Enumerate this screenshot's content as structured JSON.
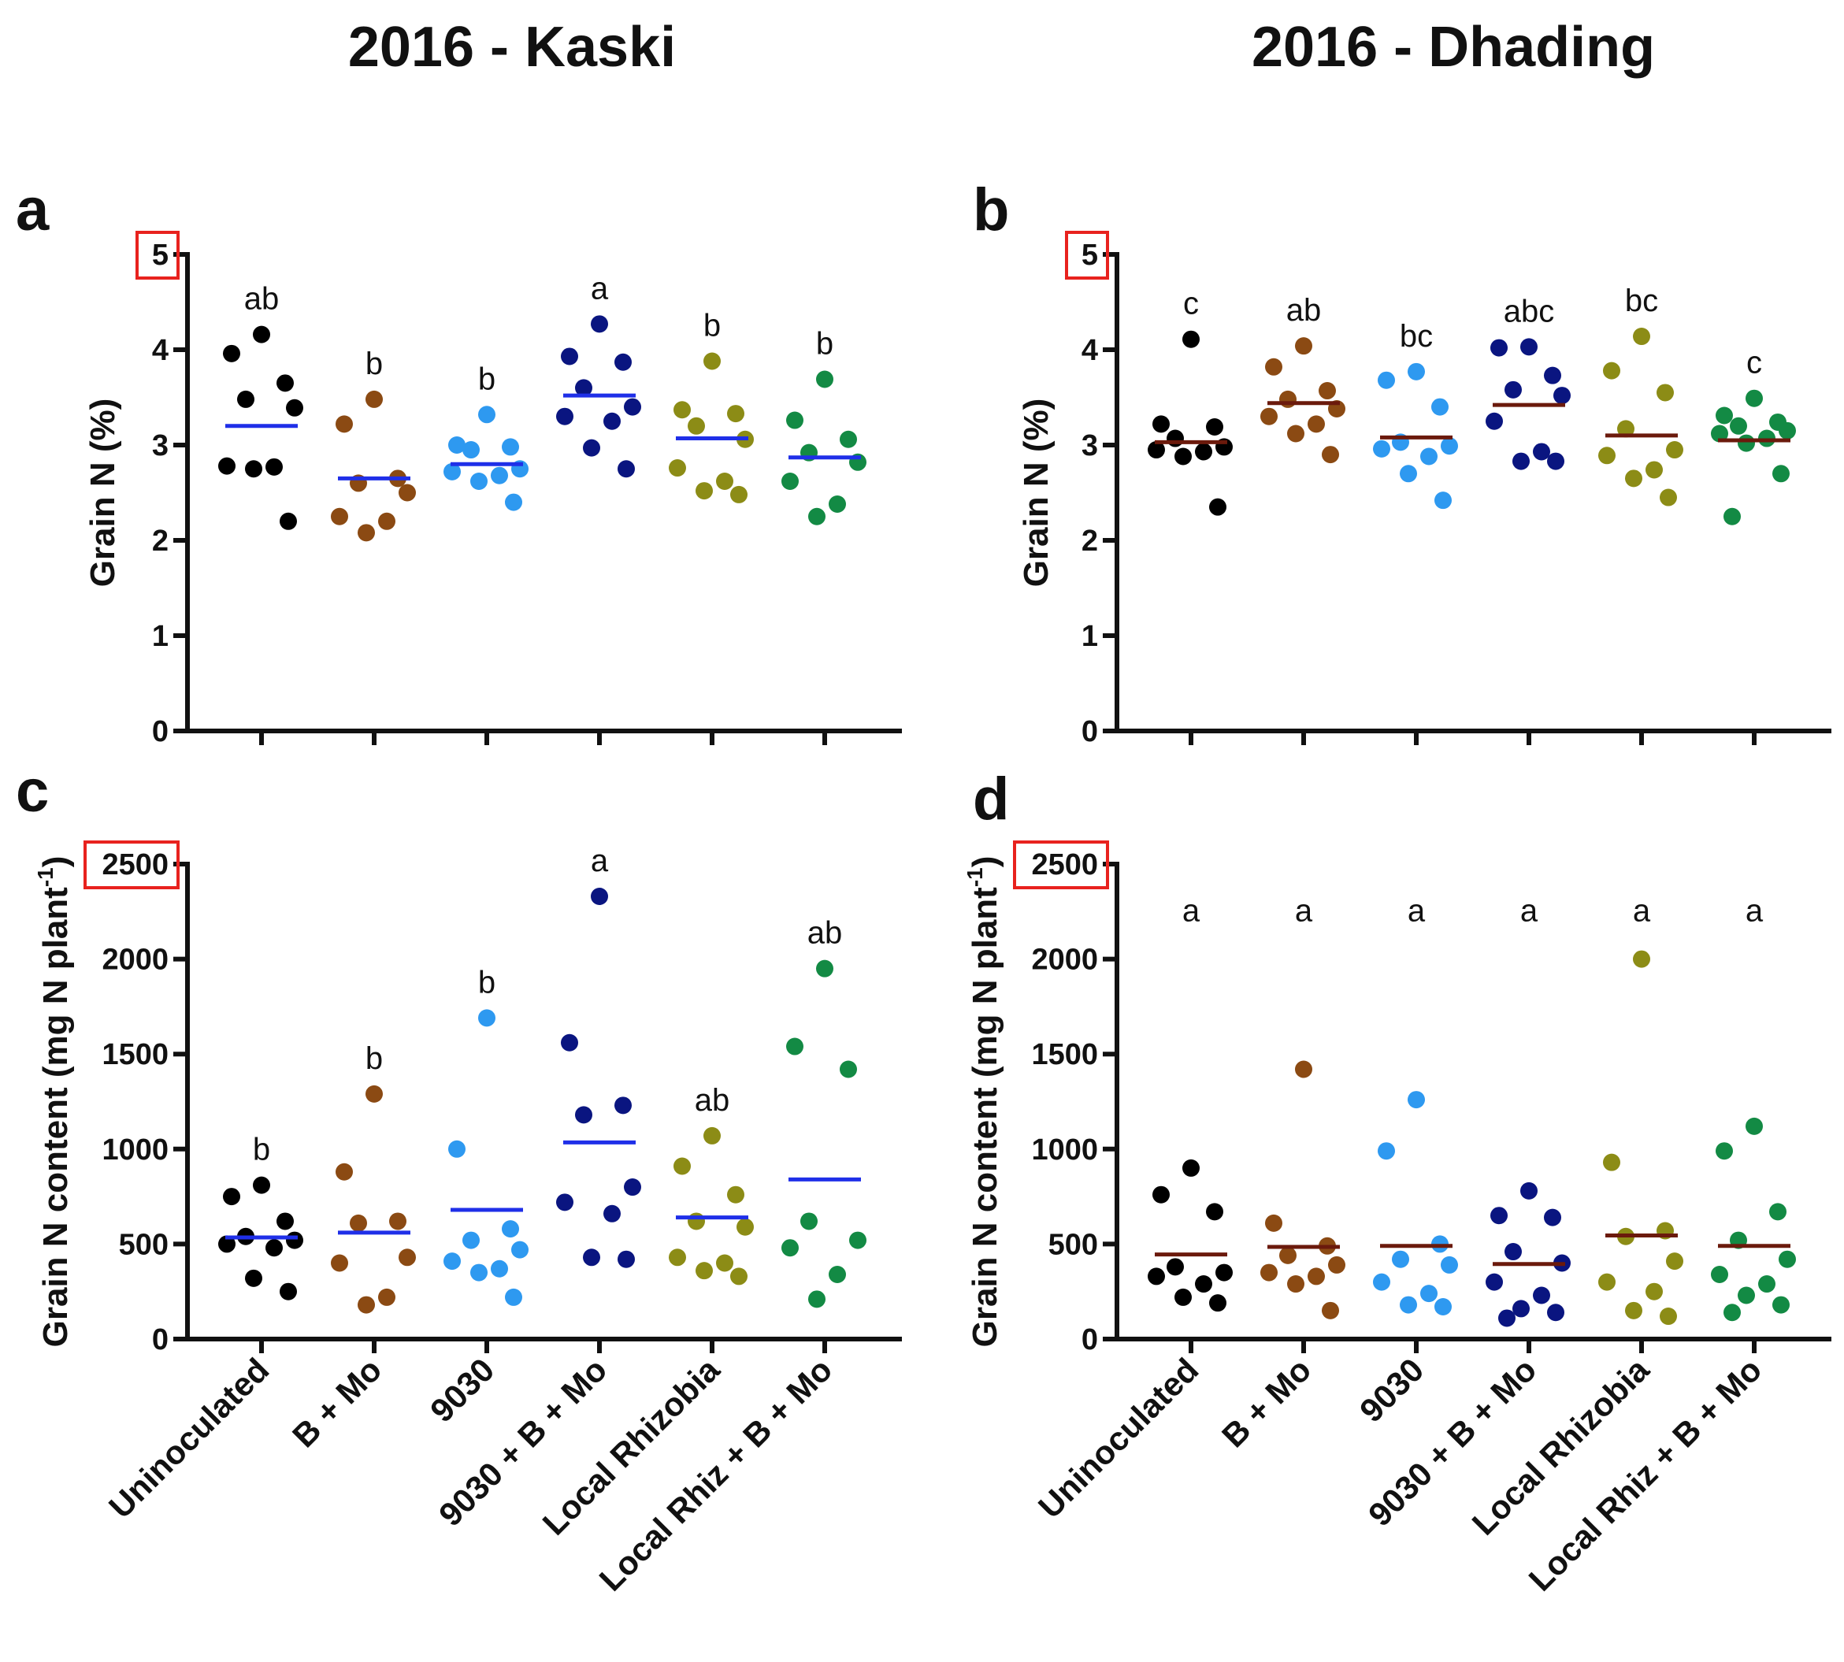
{
  "column_titles": {
    "left": "2016 - Kaski",
    "right": "2016 - Dhading"
  },
  "categories": [
    "Uninoculated",
    "B + Mo",
    "9030",
    "9030 + B + Mo",
    "Local Rhizobia",
    "Local Rhiz + B + Mo"
  ],
  "colors": {
    "groups": [
      "#000000",
      "#8b4a13",
      "#2e99f0",
      "#0a1580",
      "#8c8c16",
      "#138a44"
    ],
    "mean_kaski": "#1f2fe8",
    "mean_dhading": "#6b1a0c",
    "highlight": "#e8221e",
    "axis": "#111111"
  },
  "chart_data": [
    {
      "id": "a",
      "panel_label": "a",
      "type": "scatter",
      "site": "2016 - Kaski",
      "ylabel": "Grain N (%)",
      "ylim": [
        0,
        5
      ],
      "yticks": [
        0,
        1,
        2,
        3,
        4,
        5
      ],
      "highlighted_tick": "5",
      "letters": [
        "ab",
        "b",
        "b",
        "a",
        "b",
        "b"
      ],
      "means": [
        3.2,
        2.65,
        2.8,
        3.52,
        3.07,
        2.87
      ],
      "points": [
        [
          4.16,
          3.96,
          3.65,
          3.48,
          3.39,
          2.78,
          2.77,
          2.75,
          2.2
        ],
        [
          3.48,
          3.22,
          2.65,
          2.6,
          2.5,
          2.25,
          2.2,
          2.08
        ],
        [
          3.32,
          3.0,
          2.98,
          2.95,
          2.75,
          2.72,
          2.68,
          2.62,
          2.4
        ],
        [
          4.27,
          3.93,
          3.87,
          3.6,
          3.4,
          3.3,
          3.25,
          2.97,
          2.75
        ],
        [
          3.88,
          3.37,
          3.33,
          3.2,
          3.06,
          2.76,
          2.62,
          2.52,
          2.48
        ],
        [
          3.69,
          3.26,
          3.06,
          2.92,
          2.82,
          2.62,
          2.38,
          2.25
        ]
      ]
    },
    {
      "id": "b",
      "panel_label": "b",
      "type": "scatter",
      "site": "2016 - Dhading",
      "ylabel": "Grain N (%)",
      "ylim": [
        0,
        5
      ],
      "yticks": [
        0,
        1,
        2,
        3,
        4,
        5
      ],
      "highlighted_tick": "5",
      "letters": [
        "c",
        "ab",
        "bc",
        "abc",
        "bc",
        "c"
      ],
      "means": [
        3.03,
        3.44,
        3.08,
        3.42,
        3.1,
        3.05
      ],
      "points": [
        [
          4.11,
          3.22,
          3.19,
          3.07,
          2.98,
          2.95,
          2.93,
          2.88,
          2.35
        ],
        [
          4.04,
          3.82,
          3.57,
          3.48,
          3.38,
          3.3,
          3.22,
          3.12,
          2.9
        ],
        [
          3.77,
          3.68,
          3.4,
          3.03,
          2.99,
          2.96,
          2.88,
          2.7,
          2.42
        ],
        [
          4.03,
          4.02,
          3.73,
          3.58,
          3.52,
          3.25,
          2.93,
          2.83,
          2.83
        ],
        [
          4.14,
          3.78,
          3.55,
          3.17,
          2.95,
          2.89,
          2.74,
          2.65,
          2.45
        ],
        [
          3.49,
          3.31,
          3.24,
          3.2,
          3.15,
          3.12,
          3.07,
          3.02,
          2.7,
          2.25
        ]
      ]
    },
    {
      "id": "c",
      "panel_label": "c",
      "type": "scatter",
      "site": "2016 - Kaski",
      "ylabel": "Grain N content (mg N plant",
      "ylabel_sup": "-1",
      "ylabel_close": ")",
      "ylim": [
        0,
        2500
      ],
      "yticks": [
        0,
        500,
        1000,
        1500,
        2000,
        2500
      ],
      "highlighted_tick": "2500",
      "letters": [
        "b",
        "b",
        "b",
        "a",
        "ab",
        "ab"
      ],
      "means": [
        535,
        560,
        680,
        1035,
        640,
        840
      ],
      "points": [
        [
          810,
          750,
          620,
          540,
          520,
          500,
          480,
          320,
          250
        ],
        [
          1290,
          880,
          620,
          610,
          430,
          400,
          220,
          180
        ],
        [
          1690,
          1000,
          580,
          520,
          470,
          410,
          370,
          350,
          220
        ],
        [
          2330,
          1560,
          1230,
          1180,
          800,
          720,
          660,
          430,
          420
        ],
        [
          1070,
          910,
          760,
          620,
          590,
          430,
          400,
          360,
          330
        ],
        [
          1950,
          1540,
          1420,
          620,
          520,
          480,
          340,
          210
        ]
      ]
    },
    {
      "id": "d",
      "panel_label": "d",
      "type": "scatter",
      "site": "2016 - Dhading",
      "ylabel": "Grain N content (mg N plant",
      "ylabel_sup": "-1",
      "ylabel_close": ")",
      "ylim": [
        0,
        2500
      ],
      "yticks": [
        0,
        500,
        1000,
        1500,
        2000,
        2500
      ],
      "highlighted_tick": "2500",
      "letters": [
        "a",
        "a",
        "a",
        "a",
        "a",
        "a"
      ],
      "means": [
        445,
        485,
        490,
        395,
        545,
        490
      ],
      "points": [
        [
          900,
          760,
          670,
          380,
          350,
          330,
          290,
          220,
          190
        ],
        [
          1420,
          610,
          490,
          440,
          390,
          350,
          330,
          290,
          150
        ],
        [
          1260,
          990,
          500,
          420,
          390,
          300,
          240,
          180,
          170
        ],
        [
          780,
          650,
          640,
          460,
          400,
          300,
          230,
          160,
          140,
          110
        ],
        [
          2000,
          930,
          570,
          540,
          410,
          300,
          250,
          150,
          120
        ],
        [
          1120,
          990,
          670,
          520,
          420,
          340,
          290,
          230,
          180,
          140
        ]
      ]
    }
  ]
}
